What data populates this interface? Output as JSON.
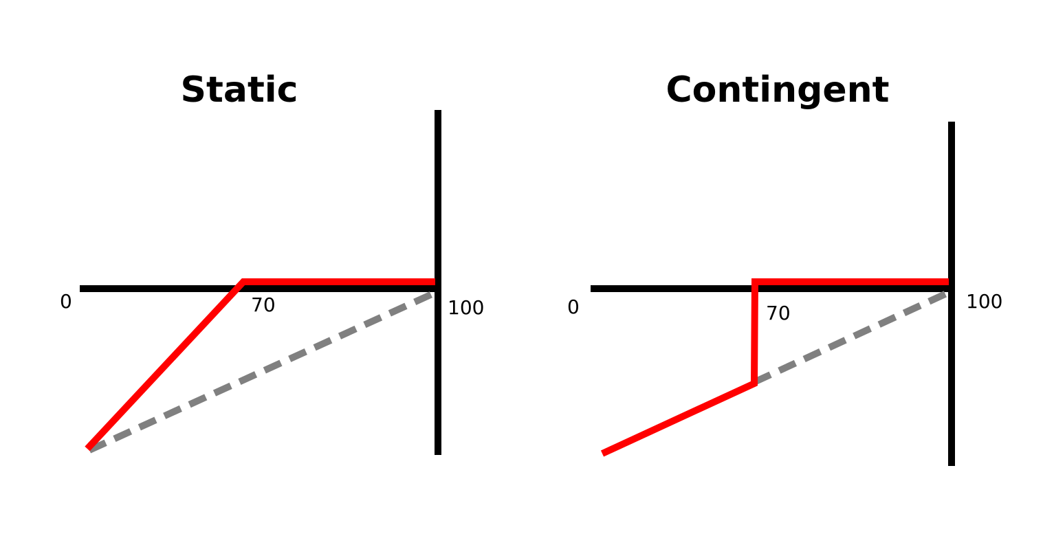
{
  "colors": {
    "axis": "#000000",
    "payoff_line": "#ff0000",
    "reference_line": "#808080",
    "background": "#ffffff"
  },
  "panels": [
    {
      "id": "static",
      "title": "Static",
      "labels": {
        "origin": "0",
        "kink": "70",
        "end": "100"
      }
    },
    {
      "id": "contingent",
      "title": "Contingent",
      "labels": {
        "origin": "0",
        "kink": "70",
        "end": "100"
      }
    }
  ]
}
